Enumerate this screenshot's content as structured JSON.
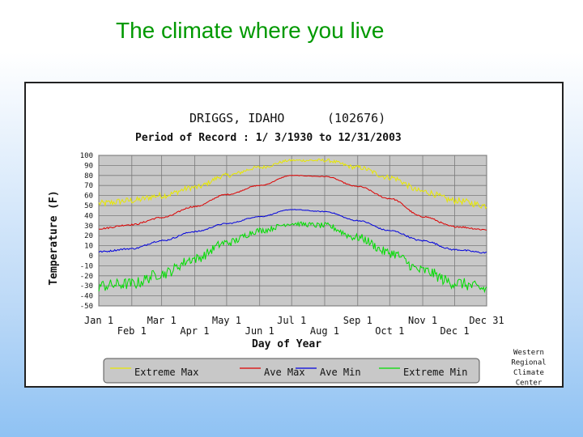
{
  "slide": {
    "title": "The climate where you live"
  },
  "chart_data": {
    "type": "line",
    "title": "DRIGGS, IDAHO",
    "station_id": "(102676)",
    "subtitle": "Period of Record : 1/ 3/1930 to 12/31/2003",
    "xlabel": "Day of Year",
    "ylabel": "Temperature (F)",
    "ylim": [
      -50,
      100
    ],
    "yticks": [
      "100",
      "90",
      "80",
      "70",
      "60",
      "50",
      "40",
      "30",
      "20",
      "10",
      "0",
      "-10",
      "-20",
      "-30",
      "-40",
      "-50"
    ],
    "xticks_top": [
      "Jan 1",
      "Mar 1",
      "May 1",
      "Jul 1",
      "Sep 1",
      "Nov 1",
      "Dec 31"
    ],
    "xticks_bottom": [
      "Feb 1",
      "Apr 1",
      "Jun 1",
      "Aug 1",
      "Oct 1",
      "Dec 1"
    ],
    "month_days": [
      1,
      32,
      60,
      91,
      121,
      152,
      182,
      213,
      244,
      274,
      305,
      335,
      365
    ],
    "grid": true,
    "legend_position": "bottom",
    "x": [
      1,
      32,
      60,
      91,
      121,
      152,
      182,
      213,
      244,
      274,
      305,
      335,
      365
    ],
    "series": [
      {
        "name": "Extreme Max",
        "color": "#e8e800",
        "values": [
          52,
          55,
          60,
          68,
          80,
          88,
          95,
          95,
          88,
          78,
          64,
          55,
          50
        ]
      },
      {
        "name": "Ave Max",
        "color": "#dd0000",
        "values": [
          27,
          31,
          38,
          49,
          61,
          70,
          80,
          79,
          69,
          57,
          39,
          29,
          26
        ]
      },
      {
        "name": "Ave Min",
        "color": "#0000dd",
        "values": [
          4,
          7,
          15,
          24,
          32,
          39,
          46,
          44,
          35,
          25,
          15,
          6,
          3
        ]
      },
      {
        "name": "Extreme Min",
        "color": "#00dd00",
        "values": [
          -30,
          -28,
          -18,
          -3,
          13,
          25,
          32,
          30,
          18,
          3,
          -15,
          -27,
          -33
        ]
      }
    ],
    "credit": [
      "Western",
      "Regional",
      "Climate",
      "Center"
    ]
  }
}
